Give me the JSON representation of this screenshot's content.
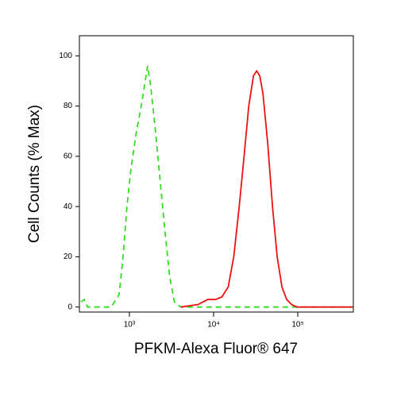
{
  "chart_data": {
    "type": "line",
    "x_label": "PFKM-Alexa Fluor® 647",
    "y_label": "Cell Counts (% Max)",
    "xscale": "log",
    "xlim": [
      255,
      457000
    ],
    "ylim": [
      -2,
      108
    ],
    "xticks": [
      {
        "value": 1000,
        "label": "10³"
      },
      {
        "value": 10000,
        "label": "10⁴"
      },
      {
        "value": 100000,
        "label": "10⁵"
      }
    ],
    "yticks": [
      0,
      20,
      40,
      60,
      80,
      100
    ],
    "series": [
      {
        "color": "#33dd22",
        "dashed": true,
        "x": [
          267,
          292,
          318,
          608,
          755,
          841,
          937,
          1044,
          1216,
          1384,
          1542,
          1645,
          1793,
          2042,
          2324,
          2647,
          3014,
          3430,
          4075,
          450000
        ],
        "values": [
          2,
          3,
          0,
          0,
          5,
          20,
          40,
          55,
          70,
          80,
          90,
          96,
          88,
          70,
          50,
          30,
          12,
          2,
          0,
          0
        ]
      },
      {
        "color": "#ee1111",
        "dashed": false,
        "x": [
          4075,
          6561,
          8511,
          10550,
          12550,
          14930,
          17350,
          20180,
          23010,
          26180,
          29790,
          32510,
          35400,
          38620,
          43960,
          50120,
          57020,
          64860,
          73960,
          84140,
          97950,
          450000
        ],
        "values": [
          0,
          1,
          3,
          3,
          4,
          8,
          20,
          40,
          60,
          80,
          92,
          94,
          92,
          85,
          65,
          40,
          20,
          8,
          3,
          1,
          0,
          0
        ]
      }
    ]
  }
}
